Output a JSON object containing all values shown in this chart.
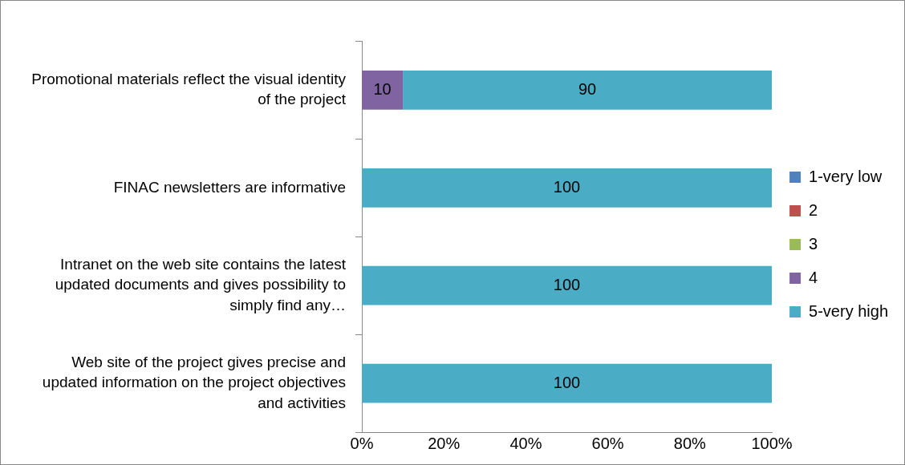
{
  "chart_data": {
    "type": "bar",
    "orientation": "horizontal",
    "stacked": true,
    "categories": [
      "Promotional materials reflect the visual identity of the project",
      "FINAC newsletters are informative",
      "Intranet on the web site contains the latest updated documents and gives possibility to simply find any…",
      "Web site of the project gives precise and updated information on the project objectives and activities"
    ],
    "series": [
      {
        "name": "1-very low",
        "color": "#4f81bd",
        "values": [
          0,
          0,
          0,
          0
        ]
      },
      {
        "name": "2",
        "color": "#c0504d",
        "values": [
          0,
          0,
          0,
          0
        ]
      },
      {
        "name": "3",
        "color": "#9bbb59",
        "values": [
          0,
          0,
          0,
          0
        ]
      },
      {
        "name": "4",
        "color": "#8064a2",
        "values": [
          10,
          0,
          0,
          0
        ],
        "value_labels": [
          "10",
          null,
          null,
          null
        ]
      },
      {
        "name": "5-very high",
        "color": "#4bacc6",
        "values": [
          90,
          100,
          100,
          100
        ],
        "value_labels": [
          "90",
          "100",
          "100",
          "100"
        ]
      }
    ],
    "xlim": [
      0,
      100
    ],
    "xticks": [
      {
        "value": 0,
        "label": "0%"
      },
      {
        "value": 20,
        "label": "20%"
      },
      {
        "value": 40,
        "label": "40%"
      },
      {
        "value": 60,
        "label": "60%"
      },
      {
        "value": 80,
        "label": "80%"
      },
      {
        "value": 100,
        "label": "100%"
      }
    ],
    "grid": false,
    "legend": "right"
  }
}
